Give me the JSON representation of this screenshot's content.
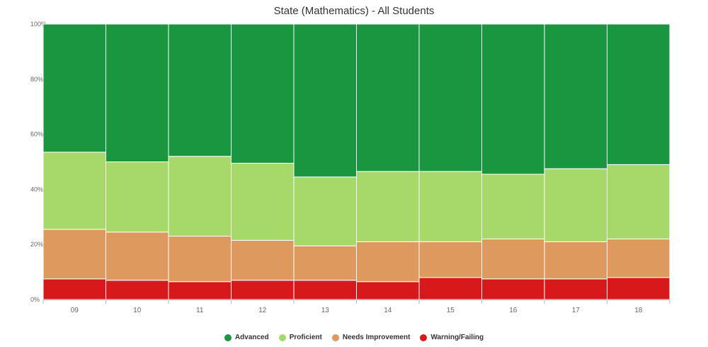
{
  "chart_data": {
    "type": "bar",
    "stacked": true,
    "percent": true,
    "title": "State (Mathematics) - All Students",
    "xlabel": "",
    "ylabel": "",
    "categories": [
      "09",
      "10",
      "11",
      "12",
      "13",
      "14",
      "15",
      "16",
      "17",
      "18"
    ],
    "ylim": [
      0,
      100
    ],
    "y_ticks": [
      "0%",
      "20%",
      "40%",
      "60%",
      "80%",
      "100%"
    ],
    "series": [
      {
        "name": "Warning/Failing",
        "color": "#d7191c",
        "values": [
          7.5,
          7,
          6.5,
          7,
          7,
          6.5,
          8,
          7.5,
          7.5,
          8
        ]
      },
      {
        "name": "Needs Improvement",
        "color": "#de995e",
        "values": [
          18,
          17.5,
          16.5,
          14.5,
          12.5,
          14.5,
          13,
          14.5,
          13.5,
          14
        ]
      },
      {
        "name": "Proficient",
        "color": "#a6d96a",
        "values": [
          28,
          25.5,
          29,
          28,
          25,
          25.5,
          25.5,
          23.5,
          26.5,
          27
        ]
      },
      {
        "name": "Advanced",
        "color": "#1a9641",
        "values": [
          46.5,
          50,
          48,
          50.5,
          55.5,
          53.5,
          53.5,
          54.5,
          52.5,
          51
        ]
      }
    ],
    "legend_order": [
      "Advanced",
      "Proficient",
      "Needs Improvement",
      "Warning/Failing"
    ],
    "legend": "bottom",
    "grid": false
  }
}
